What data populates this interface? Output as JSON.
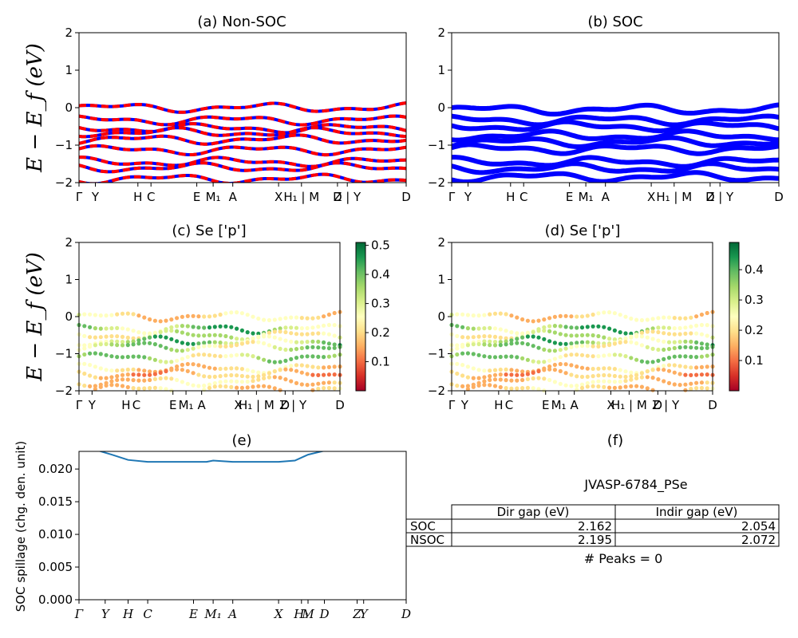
{
  "colors": {
    "nsoc": "#ff0000",
    "soc": "#0000ff",
    "spillage": "#1f77b4"
  },
  "chart_data": [
    {
      "id": "a",
      "type": "line",
      "title": "(a) Non-SOC",
      "ylabel": "E − E_f (eV)",
      "ylim": [
        -2,
        2
      ],
      "yticks": [
        "2",
        "1",
        "0",
        "−1",
        "−2"
      ],
      "kpath_labels": [
        "Γ",
        "Y",
        "H",
        "C",
        "E",
        "M₁",
        "A",
        "X",
        "H₁ | M",
        "D",
        "Z | Y",
        "D"
      ],
      "kpath_pos": [
        0,
        0.05,
        0.18,
        0.22,
        0.36,
        0.41,
        0.47,
        0.61,
        0.68,
        0.79,
        0.82,
        1.0
      ],
      "bands": [
        0.0,
        -0.33,
        -0.55,
        -0.66,
        -0.85,
        -1.13,
        -1.45,
        -1.6,
        -1.9
      ]
    },
    {
      "id": "b",
      "type": "line",
      "title": "(b) SOC",
      "ylabel": "",
      "ylim": [
        -2,
        2
      ],
      "yticks": [
        "2",
        "1",
        "0",
        "−1",
        "−2"
      ],
      "kpath_labels": [
        "Γ",
        "Y",
        "H",
        "C",
        "E",
        "M₁",
        "A",
        "X",
        "H₁ | M",
        "D",
        "Z | Y",
        "D"
      ],
      "kpath_pos": [
        0,
        0.05,
        0.18,
        0.22,
        0.36,
        0.41,
        0.47,
        0.61,
        0.68,
        0.79,
        0.82,
        1.0
      ],
      "bands": [
        -0.05,
        -0.33,
        -0.5,
        -0.75,
        -0.92,
        -1.1,
        -1.45,
        -1.62,
        -1.85
      ]
    },
    {
      "id": "c",
      "type": "scatter",
      "title": "(c)  Se ['p']",
      "ylabel": "E − E_f (eV)",
      "ylim": [
        -2,
        2
      ],
      "yticks": [
        "2",
        "1",
        "0",
        "−1",
        "−2"
      ],
      "kpath_labels": [
        "Γ",
        "Y",
        "H",
        "C",
        "E",
        "M₁",
        "A",
        "X",
        "H₁ | M",
        "D",
        "Z | Y",
        "D"
      ],
      "kpath_pos": [
        0,
        0.05,
        0.18,
        0.22,
        0.36,
        0.41,
        0.47,
        0.61,
        0.68,
        0.79,
        0.82,
        1.0
      ],
      "colorbar": {
        "ticks": [
          "0.5",
          "0.4",
          "0.3",
          "0.2",
          "0.1"
        ],
        "tick_values": [
          0.5,
          0.4,
          0.3,
          0.2,
          0.1
        ],
        "range": [
          0.0,
          0.51
        ]
      }
    },
    {
      "id": "d",
      "type": "scatter",
      "title": "(d) Se ['p']",
      "ylabel": "",
      "ylim": [
        -2,
        2
      ],
      "yticks": [
        "2",
        "1",
        "0",
        "−1",
        "−2"
      ],
      "kpath_labels": [
        "Γ",
        "Y",
        "H",
        "C",
        "E",
        "M₁",
        "A",
        "X",
        "H₁ | M",
        "D",
        "Z | Y",
        "D"
      ],
      "kpath_pos": [
        0,
        0.05,
        0.18,
        0.22,
        0.36,
        0.41,
        0.47,
        0.61,
        0.68,
        0.79,
        0.82,
        1.0
      ],
      "colorbar": {
        "ticks": [
          "0.4",
          "0.3",
          "0.2",
          "0.1"
        ],
        "tick_values": [
          0.4,
          0.3,
          0.2,
          0.1
        ],
        "range": [
          0.0,
          0.49
        ]
      }
    },
    {
      "id": "e",
      "type": "line",
      "title": "(e)",
      "ylabel": "SOC spillage (chg. den. unit)",
      "ylim": [
        0,
        0.0227
      ],
      "yticks": [
        "0.020",
        "0.015",
        "0.010",
        "0.005",
        "0.000"
      ],
      "ytick_values": [
        0.02,
        0.015,
        0.01,
        0.005,
        0.0
      ],
      "kpath_labels": [
        "Γ",
        "Y",
        "H",
        "C",
        "E",
        "M₁",
        "A",
        "X",
        "H₁",
        "M",
        "D",
        "Z",
        "Y",
        "D"
      ],
      "kpath_pos": [
        0,
        0.08,
        0.15,
        0.21,
        0.35,
        0.41,
        0.47,
        0.61,
        0.68,
        0.7,
        0.75,
        0.85,
        0.87,
        1.0
      ],
      "x": [
        0,
        0.06,
        0.1,
        0.15,
        0.21,
        0.35,
        0.39,
        0.41,
        0.47,
        0.61,
        0.66,
        0.7,
        0.75,
        1.0
      ],
      "y": [
        0.0232,
        0.0228,
        0.0222,
        0.0214,
        0.0211,
        0.0211,
        0.0211,
        0.0213,
        0.0211,
        0.0211,
        0.0213,
        0.0222,
        0.0228,
        0.0232
      ]
    }
  ],
  "panel_f": {
    "title": "(f)",
    "material": "JVASP-6784_PSe",
    "headers": [
      "Dir gap (eV)",
      "Indir gap (eV)"
    ],
    "rows": [
      {
        "label": "SOC",
        "dir": "2.162",
        "indir": "2.054"
      },
      {
        "label": "NSOC",
        "dir": "2.195",
        "indir": "2.072"
      }
    ],
    "peaks": "# Peaks = 0"
  }
}
